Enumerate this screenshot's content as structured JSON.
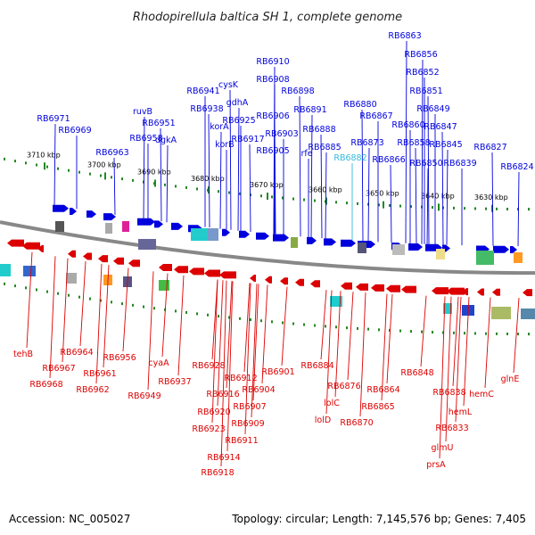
{
  "title": "Rhodopirellula baltica SH 1, complete genome",
  "footer": {
    "accession": "Accession: NC_005027",
    "summary": "Topology: circular; Length: 7,145,576 bp; Genes: 7,405"
  },
  "colors": {
    "forward": "#0000dd",
    "reverse": "#dd0000",
    "highlight": "#33bbdd",
    "backbone": "#888888",
    "tick": "#228822"
  },
  "scale_ticks": [
    "3710 kbp",
    "3700 kbp",
    "3690 kbp",
    "3680 kbp",
    "3670 kbp",
    "3660 kbp",
    "3650 kbp",
    "3640 kbp",
    "3630 kbp"
  ],
  "top_genes": [
    "RB6971",
    "RB6969",
    "RB6963",
    "ruvB",
    "RB6958",
    "RB6951",
    "dgkA",
    "RB6941",
    "RB6938",
    "korA",
    "korB",
    "cysK",
    "gdhA",
    "RB6925",
    "RB6917",
    "RB6910",
    "RB6908",
    "RB6906",
    "RB6905",
    "RB6903",
    "RB6898",
    "RB6891",
    "rfe",
    "RB6888",
    "RB6885",
    "RB6882",
    "RB6880",
    "RB6873",
    "RB6867",
    "RB6866",
    "RB6863",
    "RB6860",
    "RB6858",
    "RB6856",
    "RB6852",
    "RB6851",
    "RB6850",
    "RB6849",
    "RB6847",
    "RB6845",
    "RB6839",
    "RB6827",
    "RB6824"
  ],
  "bottom_genes": [
    "tehB",
    "RB6968",
    "RB6967",
    "RB6964",
    "RB6962",
    "RB6961",
    "RB6956",
    "RB6949",
    "cyaA",
    "RB6937",
    "RB6928",
    "RB6916",
    "RB6920",
    "RB6923",
    "RB6918",
    "RB6914",
    "RB6912",
    "RB6911",
    "RB6909",
    "RB6907",
    "RB6904",
    "RB6901",
    "RB6884",
    "lolC",
    "lolD",
    "RB6876",
    "RB6870",
    "RB6864",
    "RB6865",
    "RB6848",
    "RB6838",
    "RB6833",
    "hemL",
    "hemC",
    "glmU",
    "prsA",
    "glnE"
  ]
}
